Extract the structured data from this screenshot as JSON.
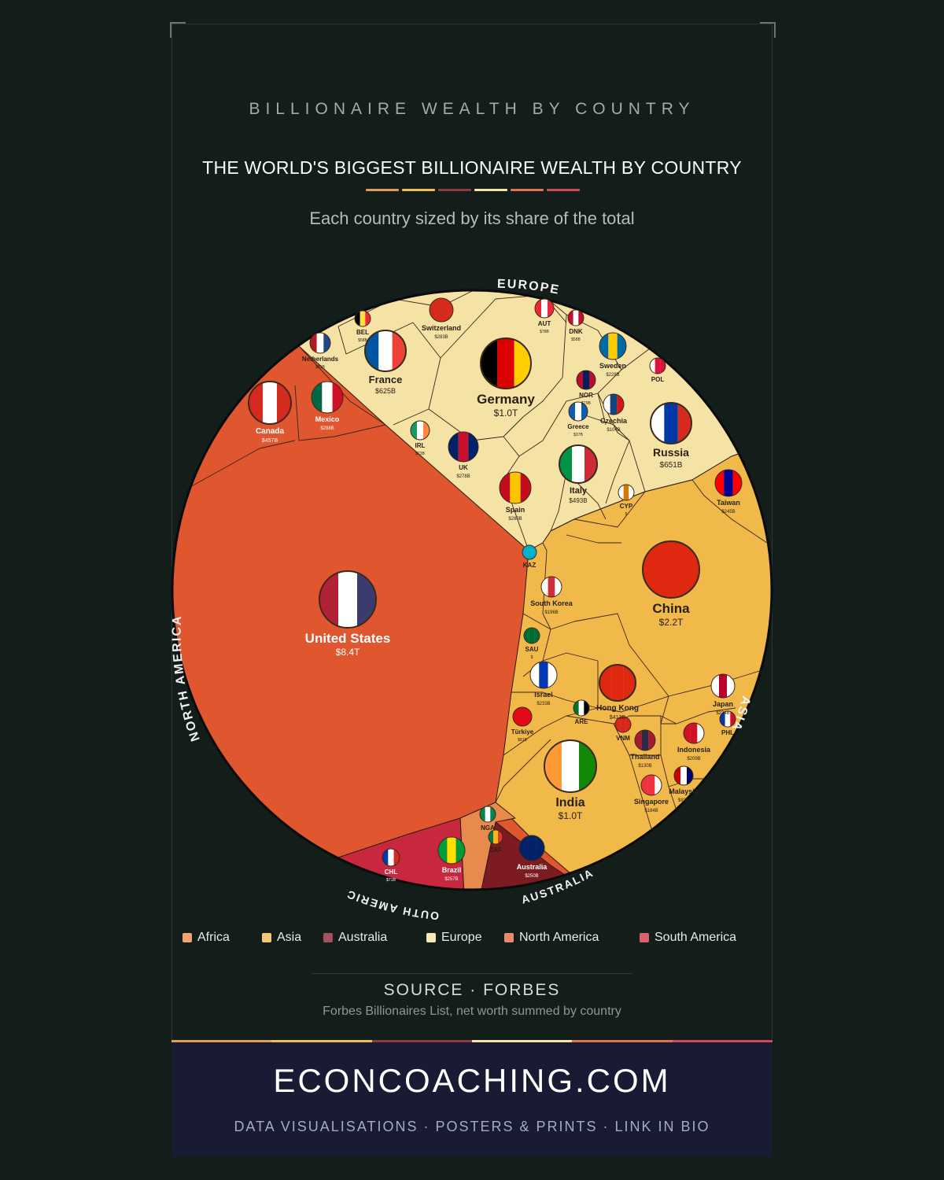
{
  "header": {
    "kicker": "BILLIONAIRE WEALTH BY COUNTRY",
    "title": "THE WORLD'S BIGGEST BILLIONAIRE WEALTH BY COUNTRY",
    "subtitle": "Each country sized by its share of the total"
  },
  "colors": {
    "africa": "#e88a4d",
    "asia": "#f0b94a",
    "australia": "#7c1c22",
    "europe": "#f5e3a6",
    "north_america": "#e0562f",
    "south_america": "#c8283f",
    "background": "#131d1a",
    "footer": "#181b33"
  },
  "chart_data": {
    "type": "voronoi-treemap",
    "title": "THE WORLD'S BIGGEST BILLIONAIRE WEALTH BY COUNTRY",
    "subtitle": "Each country sized by its share of the total",
    "groups": [
      "NORTH AMERICA",
      "EUROPE",
      "ASIA",
      "AUSTRALIA",
      "AFRICA",
      "SOUTH AMERICA"
    ],
    "countries": [
      {
        "name": "United States",
        "value": "$8.4T",
        "region": "North America",
        "flag": "us-flag-icon"
      },
      {
        "name": "Canada",
        "value": "$457B",
        "region": "North America",
        "flag": "canada-flag-icon"
      },
      {
        "name": "Mexico",
        "value": "$288B",
        "region": "North America",
        "flag": "mexico-flag-icon"
      },
      {
        "name": "Germany",
        "value": "$1.0T",
        "region": "Europe",
        "flag": "germany-flag-icon"
      },
      {
        "name": "Russia",
        "value": "$651B",
        "region": "Europe",
        "flag": "russia-flag-icon"
      },
      {
        "name": "France",
        "value": "$625B",
        "region": "Europe",
        "flag": "france-flag-icon"
      },
      {
        "name": "Italy",
        "value": "$493B",
        "region": "Europe",
        "flag": "italy-flag-icon"
      },
      {
        "name": "Switzerland",
        "value": "$283B",
        "region": "Europe",
        "flag": "switzerland-flag-icon"
      },
      {
        "name": "Spain",
        "value": "$280B",
        "region": "Europe",
        "flag": "spain-flag-icon"
      },
      {
        "name": "UK",
        "value": "$278B",
        "region": "Europe",
        "flag": "uk-flag-icon"
      },
      {
        "name": "Sweden",
        "value": "$228B",
        "region": "Europe",
        "flag": "sweden-flag-icon"
      },
      {
        "name": "Czechia",
        "value": "$104B",
        "region": "Europe",
        "flag": "czechia-flag-icon"
      },
      {
        "name": "Netherlands",
        "value": "$81B",
        "region": "Europe",
        "flag": "netherlands-flag-icon"
      },
      {
        "name": "NOR",
        "value": "$79B",
        "region": "Europe",
        "flag": "norway-flag-icon"
      },
      {
        "name": "AUT",
        "value": "$78B",
        "region": "Europe",
        "flag": "austria-flag-icon"
      },
      {
        "name": "IRL",
        "value": "$73B",
        "region": "Europe",
        "flag": "ireland-flag-icon"
      },
      {
        "name": "BEL",
        "value": "$58B",
        "region": "Europe",
        "flag": "belgium-flag-icon"
      },
      {
        "name": "DNK",
        "value": "$58B",
        "region": "Europe",
        "flag": "denmark-flag-icon"
      },
      {
        "name": "Greece",
        "value": "$37B",
        "region": "Europe",
        "flag": "greece-flag-icon"
      },
      {
        "name": "CYP",
        "value": "$",
        "region": "Europe",
        "flag": "cyprus-flag-icon"
      },
      {
        "name": "POL",
        "value": "",
        "region": "Europe",
        "flag": "poland-flag-icon"
      },
      {
        "name": "China",
        "value": "$2.2T",
        "region": "Asia",
        "flag": "china-flag-icon"
      },
      {
        "name": "India",
        "value": "$1.0T",
        "region": "Asia",
        "flag": "india-flag-icon"
      },
      {
        "name": "Hong Kong",
        "value": "$413B",
        "region": "Asia",
        "flag": "hong-kong-flag-icon"
      },
      {
        "name": "Taiwan",
        "value": "$245B",
        "region": "Asia",
        "flag": "taiwan-flag-icon"
      },
      {
        "name": "Japan",
        "value": "$234B",
        "region": "Asia",
        "flag": "japan-flag-icon"
      },
      {
        "name": "Israel",
        "value": "$233B",
        "region": "Asia",
        "flag": "israel-flag-icon"
      },
      {
        "name": "Indonesia",
        "value": "$209B",
        "region": "Asia",
        "flag": "indonesia-flag-icon"
      },
      {
        "name": "South Korea",
        "value": "$196B",
        "region": "Asia",
        "flag": "south-korea-flag-icon"
      },
      {
        "name": "Singapore",
        "value": "$184B",
        "region": "Asia",
        "flag": "singapore-flag-icon"
      },
      {
        "name": "Thailand",
        "value": "$130B",
        "region": "Asia",
        "flag": "thailand-flag-icon"
      },
      {
        "name": "Malaysia",
        "value": "$82B",
        "region": "Asia",
        "flag": "malaysia-flag-icon"
      },
      {
        "name": "Türkiye",
        "value": "$81B",
        "region": "Asia",
        "flag": "turkiye-flag-icon"
      },
      {
        "name": "SAU",
        "value": "$",
        "region": "Asia",
        "flag": "saudi-flag-icon"
      },
      {
        "name": "ARE",
        "value": "",
        "region": "Asia",
        "flag": "uae-flag-icon"
      },
      {
        "name": "VNM",
        "value": "",
        "region": "Asia",
        "flag": "vietnam-flag-icon"
      },
      {
        "name": "PHL",
        "value": "",
        "region": "Asia",
        "flag": "philippines-flag-icon"
      },
      {
        "name": "KAZ",
        "value": "",
        "region": "Asia",
        "flag": "kazakhstan-flag-icon"
      },
      {
        "name": "Australia",
        "value": "$250B",
        "region": "Australia",
        "flag": "australia-flag-icon"
      },
      {
        "name": "NGA",
        "value": "",
        "region": "Africa",
        "flag": "nigeria-flag-icon"
      },
      {
        "name": "ZAF",
        "value": "",
        "region": "Africa",
        "flag": "south-africa-flag-icon"
      },
      {
        "name": "Brazil",
        "value": "$257B",
        "region": "South America",
        "flag": "brazil-flag-icon"
      },
      {
        "name": "CHL",
        "value": "$71B",
        "region": "South America",
        "flag": "chile-flag-icon"
      }
    ],
    "legend_position": "bottom"
  },
  "legend": [
    {
      "label": "Africa",
      "color": "#f2a26e"
    },
    {
      "label": "Asia",
      "color": "#f2c677"
    },
    {
      "label": "Australia",
      "color": "#a4525e"
    },
    {
      "label": "Europe",
      "color": "#f7e6b7"
    },
    {
      "label": "North America",
      "color": "#e88b6b"
    },
    {
      "label": "South America",
      "color": "#d86270"
    }
  ],
  "source": {
    "label": "SOURCE · FORBES",
    "note": "Forbes Billionaires List, net worth summed by country"
  },
  "footer": {
    "brand": "ECONCOACHING.COM",
    "tagline": "DATA VISUALISATIONS · POSTERS & PRINTS · LINK IN BIO"
  }
}
